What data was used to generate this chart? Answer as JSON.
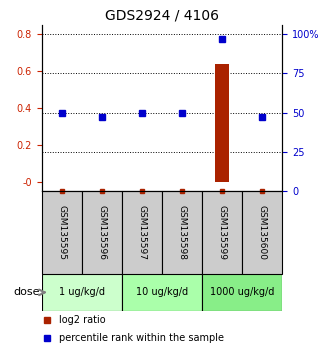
{
  "title": "GDS2924 / 4106",
  "samples": [
    "GSM135595",
    "GSM135596",
    "GSM135597",
    "GSM135598",
    "GSM135599",
    "GSM135600"
  ],
  "log2_ratio": [
    0.0,
    0.0,
    0.0,
    0.0,
    0.64,
    0.0
  ],
  "percentile_rank": [
    50.0,
    47.0,
    50.0,
    50.0,
    97.0,
    47.0
  ],
  "left_ylim": [
    -0.05,
    0.85
  ],
  "right_ylim": [
    0,
    106
  ],
  "left_yticks": [
    0.0,
    0.2,
    0.4,
    0.6,
    0.8
  ],
  "left_yticklabels": [
    "-0",
    "0.2",
    "0.4",
    "0.6",
    "0.8"
  ],
  "right_yticks": [
    0,
    25,
    50,
    75,
    100
  ],
  "right_yticklabels": [
    "0",
    "25",
    "50",
    "75",
    "100%"
  ],
  "dose_groups": [
    {
      "label": "1 ug/kg/d",
      "samples": [
        "GSM135595",
        "GSM135596"
      ],
      "color": "#ccffcc"
    },
    {
      "label": "10 ug/kg/d",
      "samples": [
        "GSM135597",
        "GSM135598"
      ],
      "color": "#aaffaa"
    },
    {
      "label": "1000 ug/kg/d",
      "samples": [
        "GSM135599",
        "GSM135600"
      ],
      "color": "#88ee88"
    }
  ],
  "bar_color": "#aa2200",
  "dot_color": "#0000cc",
  "grid_color": "#000000",
  "sample_box_color": "#cccccc",
  "left_tick_color": "#cc2200",
  "right_tick_color": "#0000cc",
  "legend_red_label": "log2 ratio",
  "legend_blue_label": "percentile rank within the sample",
  "dose_label": "dose",
  "bar_width": 0.35
}
